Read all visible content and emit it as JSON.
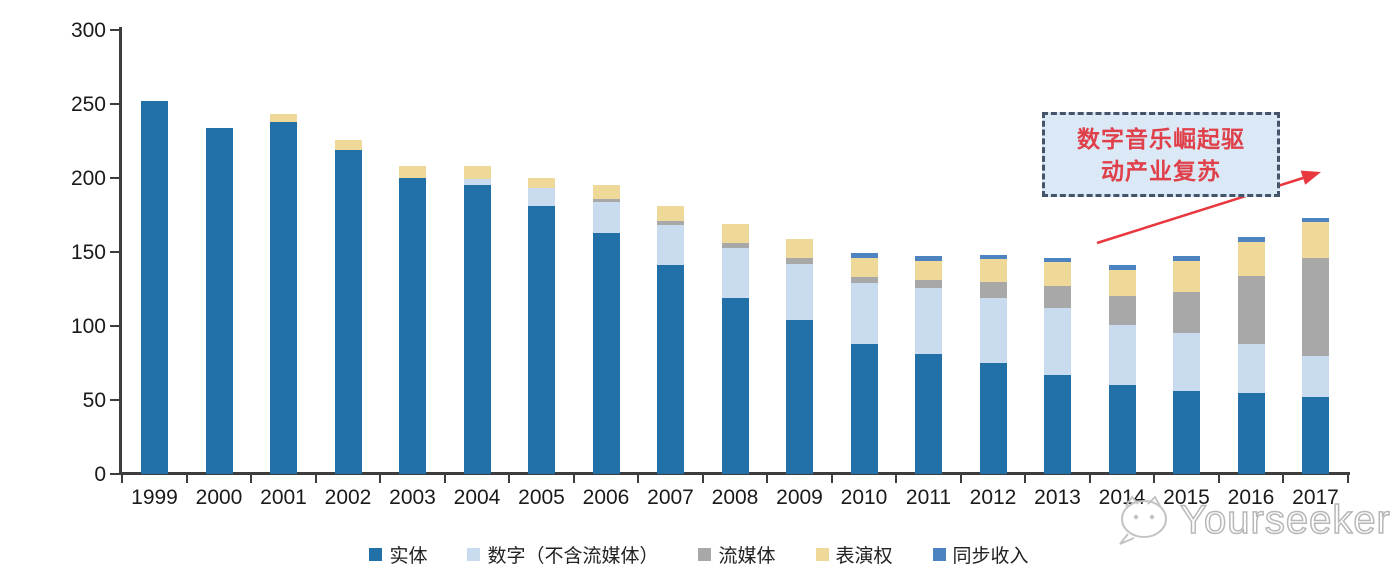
{
  "chart_data": {
    "type": "bar",
    "stacked": true,
    "title": "",
    "xlabel": "",
    "ylabel": "",
    "ylim": [
      0,
      300
    ],
    "yticks": [
      0,
      50,
      100,
      150,
      200,
      250,
      300
    ],
    "grid": false,
    "legend_position": "bottom",
    "categories": [
      "1999",
      "2000",
      "2001",
      "2002",
      "2003",
      "2004",
      "2005",
      "2006",
      "2007",
      "2008",
      "2009",
      "2010",
      "2011",
      "2012",
      "2013",
      "2014",
      "2015",
      "2016",
      "2017"
    ],
    "series": [
      {
        "name": "实体",
        "color": "#2170A8",
        "values": [
          252,
          234,
          238,
          219,
          200,
          195,
          181,
          163,
          141,
          119,
          104,
          88,
          81,
          75,
          67,
          60,
          56,
          55,
          52
        ]
      },
      {
        "name": "数字（不含流媒体）",
        "color": "#C9DCEF",
        "values": [
          0,
          0,
          0,
          0,
          0,
          4,
          12,
          21,
          27,
          34,
          38,
          41,
          45,
          44,
          45,
          41,
          39,
          33,
          28
        ]
      },
      {
        "name": "流媒体",
        "color": "#A8A8A8",
        "values": [
          0,
          0,
          0,
          0,
          0,
          0,
          0,
          2,
          3,
          3,
          4,
          4,
          5,
          11,
          15,
          19,
          28,
          46,
          66
        ]
      },
      {
        "name": "表演权",
        "color": "#EFD998",
        "values": [
          0,
          0,
          5,
          7,
          8,
          9,
          7,
          9,
          10,
          13,
          13,
          13,
          13,
          15,
          16,
          18,
          21,
          23,
          24
        ]
      },
      {
        "name": "同步收入",
        "color": "#4D83C0",
        "values": [
          0,
          0,
          0,
          0,
          0,
          0,
          0,
          0,
          0,
          0,
          0,
          3,
          3,
          3,
          3,
          3,
          3,
          3,
          3
        ]
      }
    ]
  },
  "annotation": {
    "line1": "数字音乐崛起驱",
    "line2": "动产业复苏",
    "text_color": "#E0404A",
    "border_color": "#44546A",
    "fill_color": "#DBE8F6",
    "arrow_color": "#E8373D"
  },
  "watermark": {
    "text": "Yourseeker"
  }
}
